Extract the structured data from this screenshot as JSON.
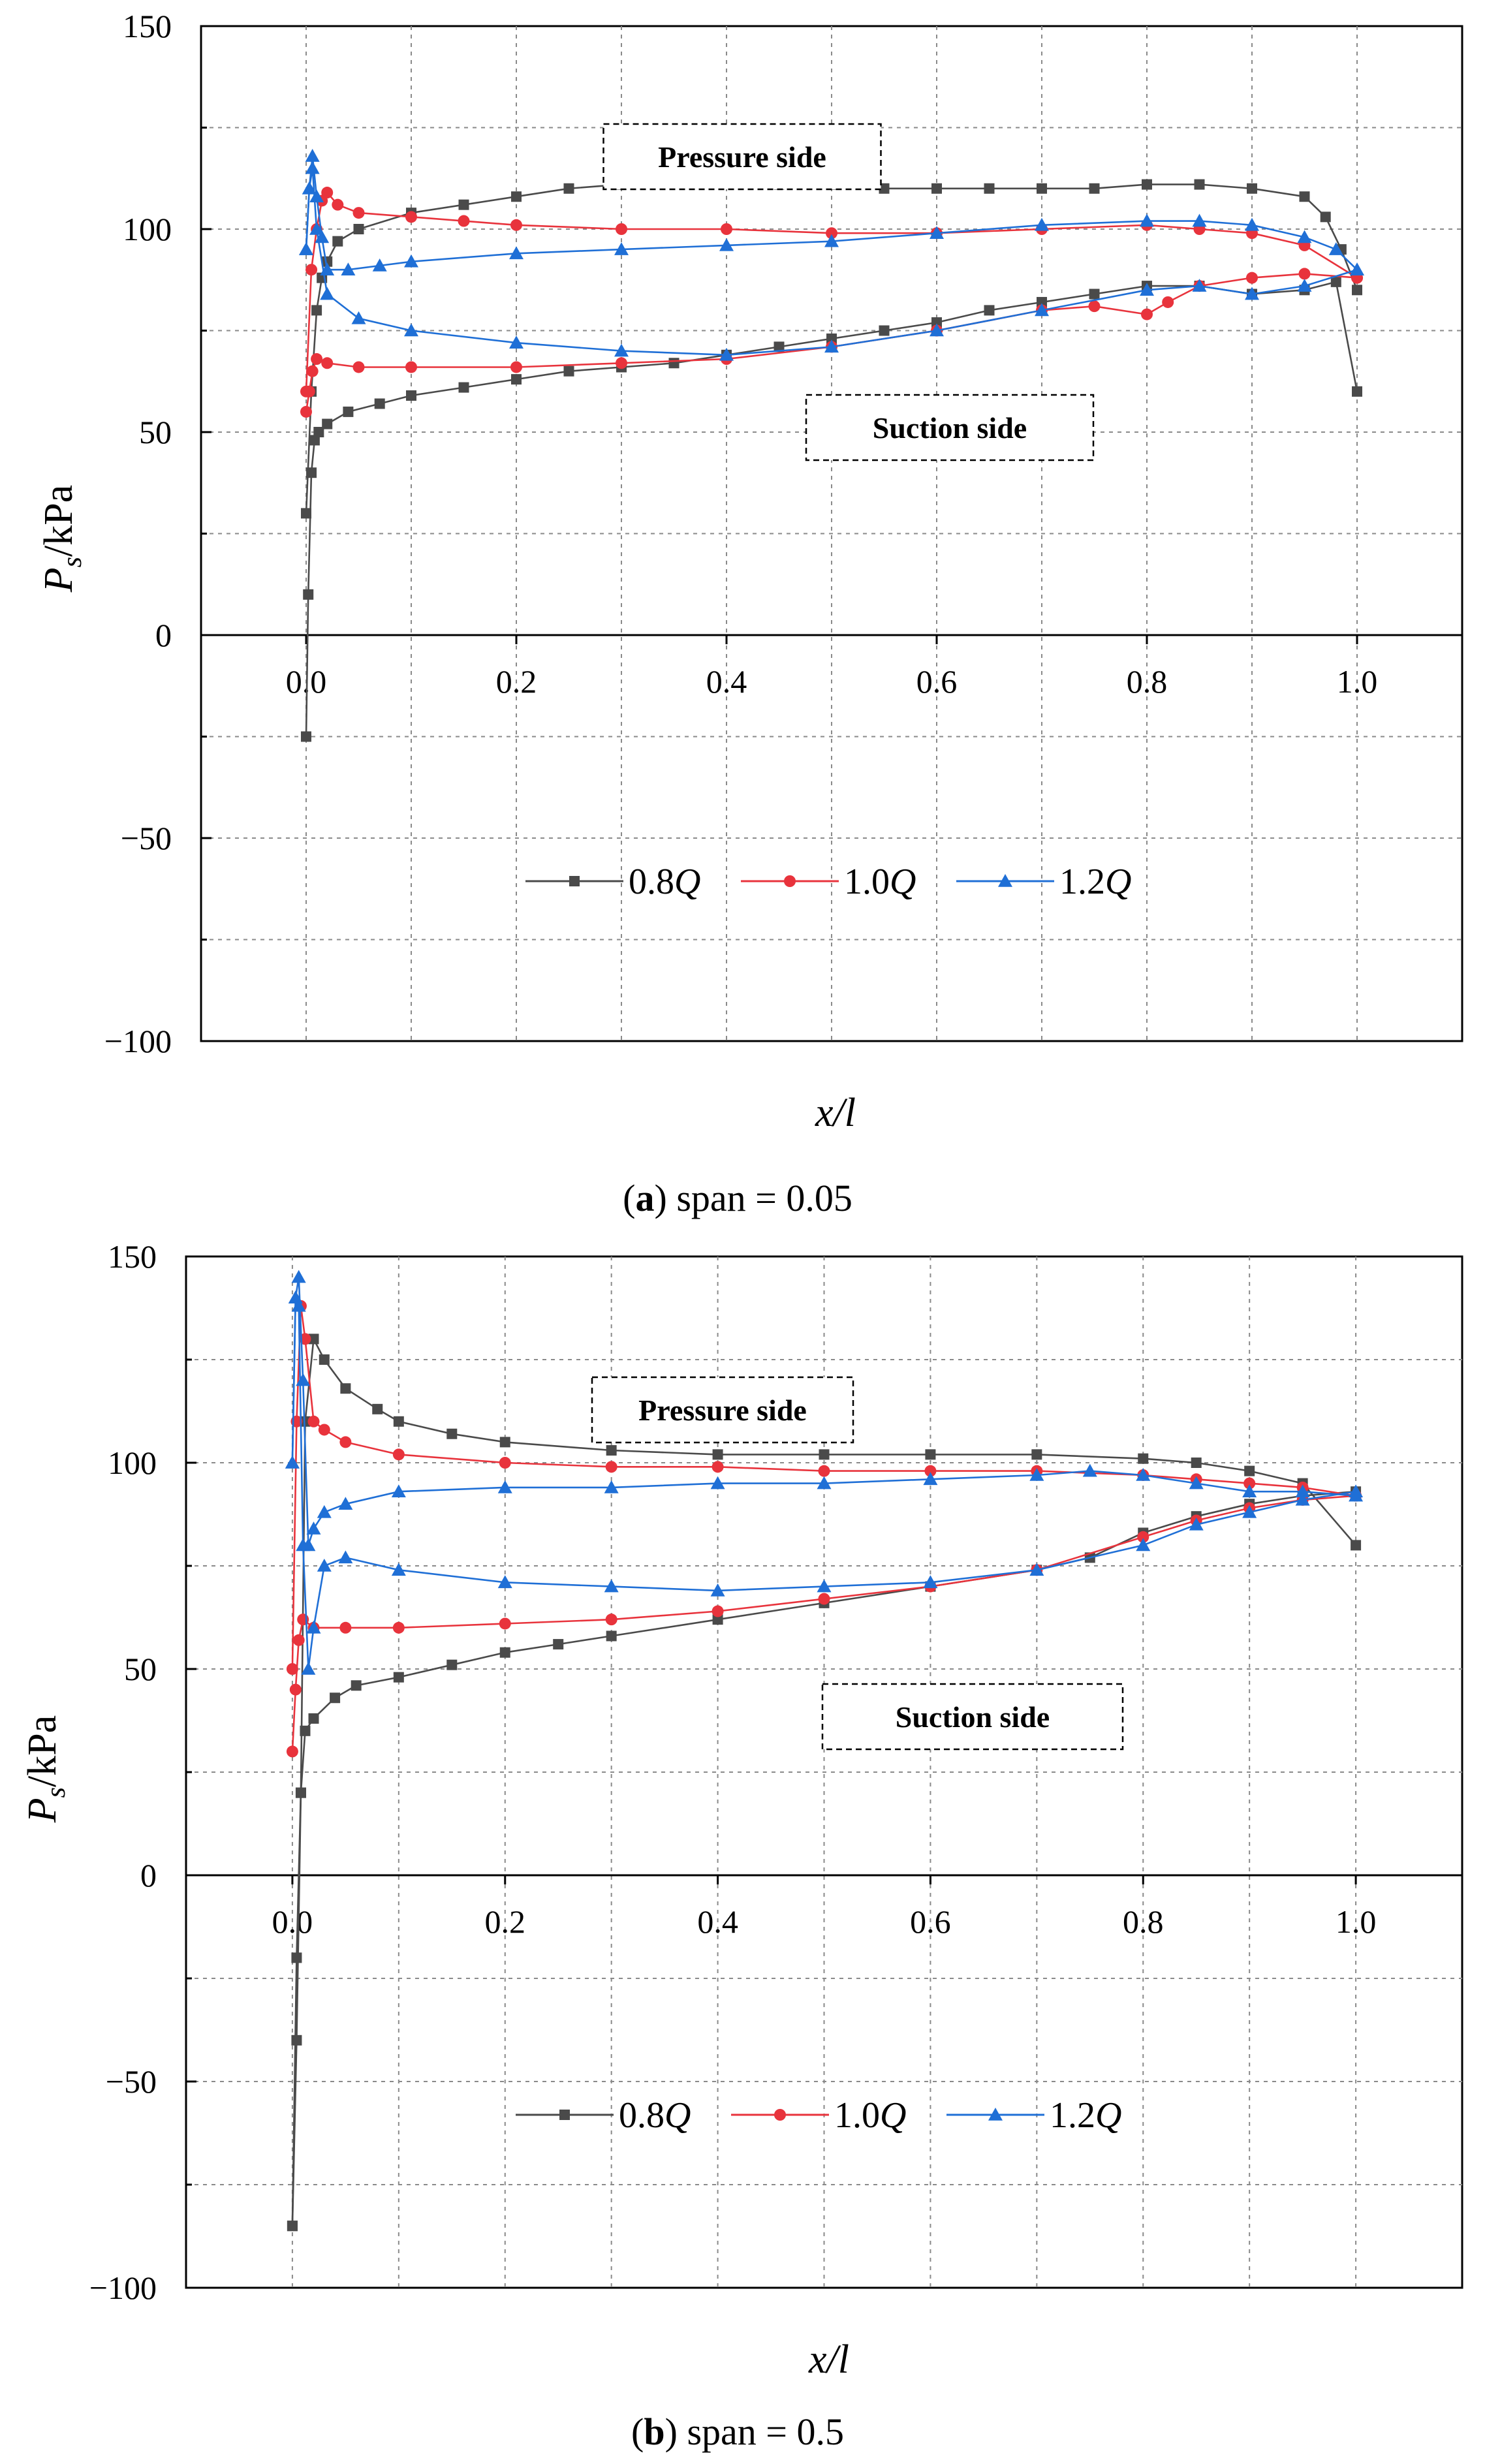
{
  "chart_data": [
    {
      "type": "line",
      "panel_letter": "a",
      "caption": "span = 0.05",
      "xlabel": "x/l",
      "ylabel": "Ps/kPa",
      "ylabel_main": "P",
      "ylabel_sub": "s",
      "ylabel_rest": "/kPa",
      "xlim": [
        -0.1,
        1.1
      ],
      "ylim": [
        -100,
        150
      ],
      "xticks": [
        0.0,
        0.2,
        0.4,
        0.6,
        0.8,
        1.0
      ],
      "xtick_labels": [
        "0.0",
        "0.2",
        "0.4",
        "0.6",
        "0.8",
        "1.0"
      ],
      "yticks": [
        -100,
        -50,
        0,
        50,
        100,
        150
      ],
      "ytick_labels": [
        "−100",
        "−50",
        "0",
        "50",
        "100",
        "150"
      ],
      "grid": true,
      "annotations": [
        {
          "text": "Pressure side"
        },
        {
          "text": "Suction side"
        }
      ],
      "legend": [
        {
          "label": "0.8Q",
          "prefix": "0.8",
          "suffix": "Q"
        },
        {
          "label": "1.0Q",
          "prefix": "1.0",
          "suffix": "Q"
        },
        {
          "label": "1.2Q",
          "prefix": "1.2",
          "suffix": "Q"
        }
      ],
      "series": [
        {
          "name": "0.8Q",
          "color": "#4a4a4a",
          "marker": "square",
          "pressure_side": {
            "x": [
              0.0,
              0.005,
              0.01,
              0.015,
              0.02,
              0.03,
              0.05,
              0.1,
              0.15,
              0.2,
              0.25,
              0.3,
              0.35,
              0.4,
              0.45,
              0.5,
              0.55,
              0.6,
              0.65,
              0.7,
              0.75,
              0.8,
              0.85,
              0.9,
              0.95,
              0.97,
              0.985,
              1.0
            ],
            "y": [
              30,
              60,
              80,
              88,
              92,
              97,
              100,
              104,
              106,
              108,
              110,
              111,
              112,
              112,
              111,
              111,
              110,
              110,
              110,
              110,
              110,
              111,
              111,
              110,
              108,
              103,
              95,
              85
            ]
          },
          "suction_side": {
            "x": [
              0.0,
              0.002,
              0.005,
              0.008,
              0.012,
              0.02,
              0.04,
              0.07,
              0.1,
              0.15,
              0.2,
              0.25,
              0.3,
              0.35,
              0.4,
              0.45,
              0.5,
              0.55,
              0.6,
              0.65,
              0.7,
              0.75,
              0.8,
              0.85,
              0.9,
              0.95,
              0.98,
              1.0
            ],
            "y": [
              -25,
              10,
              40,
              48,
              50,
              52,
              55,
              57,
              59,
              61,
              63,
              65,
              66,
              67,
              69,
              71,
              73,
              75,
              77,
              80,
              82,
              84,
              86,
              86,
              84,
              85,
              87,
              60
            ]
          }
        },
        {
          "name": "1.0Q",
          "color": "#e8333c",
          "marker": "circle",
          "pressure_side": {
            "x": [
              0.0,
              0.005,
              0.01,
              0.015,
              0.02,
              0.03,
              0.05,
              0.1,
              0.15,
              0.2,
              0.3,
              0.4,
              0.5,
              0.6,
              0.7,
              0.8,
              0.85,
              0.9,
              0.95,
              1.0
            ],
            "y": [
              60,
              90,
              100,
              107,
              109,
              106,
              104,
              103,
              102,
              101,
              100,
              100,
              99,
              99,
              100,
              101,
              100,
              99,
              96,
              88
            ]
          },
          "suction_side": {
            "x": [
              0.0,
              0.003,
              0.006,
              0.01,
              0.02,
              0.05,
              0.1,
              0.2,
              0.3,
              0.4,
              0.5,
              0.6,
              0.7,
              0.75,
              0.8,
              0.82,
              0.85,
              0.9,
              0.95,
              1.0
            ],
            "y": [
              55,
              60,
              65,
              68,
              67,
              66,
              66,
              66,
              67,
              68,
              71,
              75,
              80,
              81,
              79,
              82,
              86,
              88,
              89,
              88
            ]
          }
        },
        {
          "name": "1.2Q",
          "color": "#1f6fd6",
          "marker": "triangle",
          "pressure_side": {
            "x": [
              0.0,
              0.003,
              0.006,
              0.01,
              0.015,
              0.02,
              0.04,
              0.07,
              0.1,
              0.2,
              0.3,
              0.4,
              0.5,
              0.6,
              0.7,
              0.8,
              0.85,
              0.9,
              0.95,
              0.98,
              1.0
            ],
            "y": [
              95,
              110,
              118,
              108,
              98,
              90,
              90,
              91,
              92,
              94,
              95,
              96,
              97,
              99,
              101,
              102,
              102,
              101,
              98,
              95,
              90
            ]
          },
          "suction_side": {
            "x": [
              0.0,
              0.003,
              0.006,
              0.01,
              0.02,
              0.05,
              0.1,
              0.2,
              0.3,
              0.4,
              0.5,
              0.6,
              0.7,
              0.8,
              0.85,
              0.9,
              0.95,
              1.0
            ],
            "y": [
              95,
              110,
              115,
              100,
              84,
              78,
              75,
              72,
              70,
              69,
              71,
              75,
              80,
              85,
              86,
              84,
              86,
              90
            ]
          }
        }
      ]
    },
    {
      "type": "line",
      "panel_letter": "b",
      "caption": "span = 0.5",
      "xlabel": "x/l",
      "ylabel": "Ps/kPa",
      "ylabel_main": "P",
      "ylabel_sub": "s",
      "ylabel_rest": "/kPa",
      "xlim": [
        -0.1,
        1.1
      ],
      "ylim": [
        -100,
        150
      ],
      "xticks": [
        0.0,
        0.2,
        0.4,
        0.6,
        0.8,
        1.0
      ],
      "xtick_labels": [
        "0.0",
        "0.2",
        "0.4",
        "0.6",
        "0.8",
        "1.0"
      ],
      "yticks": [
        -100,
        -50,
        0,
        50,
        100,
        150
      ],
      "ytick_labels": [
        "−100",
        "−50",
        "0",
        "50",
        "100",
        "150"
      ],
      "grid": true,
      "annotations": [
        {
          "text": "Pressure side"
        },
        {
          "text": "Suction side"
        }
      ],
      "legend": [
        {
          "label": "0.8Q",
          "prefix": "0.8",
          "suffix": "Q"
        },
        {
          "label": "1.0Q",
          "prefix": "1.0",
          "suffix": "Q"
        },
        {
          "label": "1.2Q",
          "prefix": "1.2",
          "suffix": "Q"
        }
      ],
      "series": [
        {
          "name": "0.8Q",
          "color": "#4a4a4a",
          "marker": "square",
          "pressure_side": {
            "x": [
              0.0,
              0.004,
              0.008,
              0.012,
              0.02,
              0.03,
              0.05,
              0.08,
              0.1,
              0.15,
              0.2,
              0.3,
              0.4,
              0.5,
              0.6,
              0.7,
              0.8,
              0.85,
              0.9,
              0.95,
              1.0
            ],
            "y": [
              -85,
              -40,
              20,
              110,
              130,
              125,
              118,
              113,
              110,
              107,
              105,
              103,
              102,
              102,
              102,
              102,
              101,
              100,
              98,
              95,
              80
            ]
          },
          "suction_side": {
            "x": [
              0.0,
              0.004,
              0.008,
              0.012,
              0.02,
              0.04,
              0.06,
              0.1,
              0.15,
              0.2,
              0.25,
              0.3,
              0.4,
              0.5,
              0.6,
              0.7,
              0.75,
              0.8,
              0.85,
              0.9,
              0.95,
              1.0
            ],
            "y": [
              -85,
              -20,
              20,
              35,
              38,
              43,
              46,
              48,
              51,
              54,
              56,
              58,
              62,
              66,
              70,
              74,
              77,
              83,
              87,
              90,
              92,
              93
            ]
          }
        },
        {
          "name": "1.0Q",
          "color": "#e8333c",
          "marker": "circle",
          "pressure_side": {
            "x": [
              0.0,
              0.004,
              0.008,
              0.012,
              0.02,
              0.03,
              0.05,
              0.1,
              0.2,
              0.3,
              0.4,
              0.5,
              0.6,
              0.7,
              0.8,
              0.85,
              0.9,
              0.95,
              1.0
            ],
            "y": [
              50,
              110,
              138,
              130,
              110,
              108,
              105,
              102,
              100,
              99,
              99,
              98,
              98,
              98,
              97,
              96,
              95,
              94,
              92
            ]
          },
          "suction_side": {
            "x": [
              0.0,
              0.003,
              0.006,
              0.01,
              0.02,
              0.05,
              0.1,
              0.2,
              0.3,
              0.4,
              0.5,
              0.6,
              0.7,
              0.8,
              0.85,
              0.9,
              0.95,
              1.0
            ],
            "y": [
              30,
              45,
              57,
              62,
              60,
              60,
              60,
              61,
              62,
              64,
              67,
              70,
              74,
              82,
              86,
              89,
              91,
              92
            ]
          }
        },
        {
          "name": "1.2Q",
          "color": "#1f6fd6",
          "marker": "triangle",
          "pressure_side": {
            "x": [
              0.0,
              0.003,
              0.006,
              0.01,
              0.015,
              0.02,
              0.03,
              0.05,
              0.1,
              0.2,
              0.3,
              0.4,
              0.5,
              0.6,
              0.7,
              0.75,
              0.8,
              0.85,
              0.9,
              0.95,
              1.0
            ],
            "y": [
              100,
              140,
              145,
              120,
              80,
              84,
              88,
              90,
              93,
              94,
              94,
              95,
              95,
              96,
              97,
              98,
              97,
              95,
              93,
              93,
              92
            ]
          },
          "suction_side": {
            "x": [
              0.0,
              0.003,
              0.006,
              0.01,
              0.015,
              0.02,
              0.03,
              0.05,
              0.1,
              0.2,
              0.3,
              0.4,
              0.5,
              0.6,
              0.7,
              0.8,
              0.85,
              0.9,
              0.95,
              1.0
            ],
            "y": [
              100,
              140,
              138,
              80,
              50,
              60,
              75,
              77,
              74,
              71,
              70,
              69,
              70,
              71,
              74,
              80,
              85,
              88,
              91,
              93
            ]
          }
        }
      ]
    }
  ]
}
